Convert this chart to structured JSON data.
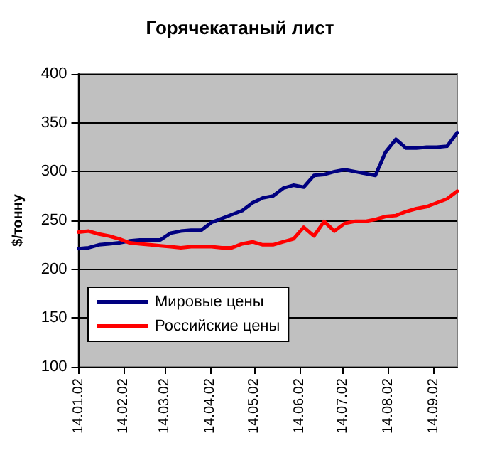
{
  "chart_data": {
    "type": "line",
    "title": "Горячекатаный лист",
    "ylabel": "$/тонну",
    "x": [
      "2002-01-14",
      "2002-01-21",
      "2002-01-28",
      "2002-02-04",
      "2002-02-11",
      "2002-02-18",
      "2002-02-25",
      "2002-03-04",
      "2002-03-11",
      "2002-03-18",
      "2002-03-25",
      "2002-04-01",
      "2002-04-08",
      "2002-04-15",
      "2002-04-22",
      "2002-04-29",
      "2002-05-06",
      "2002-05-13",
      "2002-05-20",
      "2002-05-27",
      "2002-06-03",
      "2002-06-10",
      "2002-06-17",
      "2002-06-24",
      "2002-07-01",
      "2002-07-08",
      "2002-07-15",
      "2002-07-22",
      "2002-07-29",
      "2002-08-05",
      "2002-08-12",
      "2002-08-19",
      "2002-08-26",
      "2002-09-02",
      "2002-09-09",
      "2002-09-16",
      "2002-09-23",
      "2002-09-30"
    ],
    "series": [
      {
        "name": "Мировые цены",
        "color": "#000080",
        "values": [
          221,
          222,
          225,
          226,
          227,
          229,
          230,
          230,
          230,
          237,
          239,
          240,
          240,
          248,
          252,
          256,
          260,
          268,
          273,
          275,
          283,
          286,
          284,
          296,
          297,
          300,
          302,
          300,
          298,
          296,
          320,
          333,
          324,
          324,
          325,
          325,
          326,
          340
        ]
      },
      {
        "name": "Российские цены",
        "color": "#ff0000",
        "values": [
          238,
          239,
          236,
          234,
          231,
          227,
          226,
          225,
          224,
          223,
          222,
          223,
          223,
          223,
          222,
          222,
          226,
          228,
          225,
          225,
          228,
          231,
          243,
          234,
          249,
          239,
          247,
          249,
          249,
          251,
          254,
          255,
          259,
          262,
          264,
          268,
          272,
          280
        ]
      }
    ],
    "xlim": [
      "2002-01-14",
      "2002-09-30"
    ],
    "xticks": [
      {
        "value": "2002-01-14",
        "label": "14.01.02"
      },
      {
        "value": "2002-02-14",
        "label": "14.02.02"
      },
      {
        "value": "2002-03-14",
        "label": "14.03.02"
      },
      {
        "value": "2002-04-14",
        "label": "14.04.02"
      },
      {
        "value": "2002-05-14",
        "label": "14.05.02"
      },
      {
        "value": "2002-06-14",
        "label": "14.06.02"
      },
      {
        "value": "2002-07-14",
        "label": "14.07.02"
      },
      {
        "value": "2002-08-14",
        "label": "14.08.02"
      },
      {
        "value": "2002-09-14",
        "label": "14.09.02"
      }
    ],
    "ylim": [
      100,
      400
    ],
    "yticks": [
      100,
      150,
      200,
      250,
      300,
      350,
      400
    ],
    "grid": "y",
    "legend": "bottom left",
    "marker": "none",
    "line_style": "solid"
  }
}
